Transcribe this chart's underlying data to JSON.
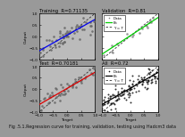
{
  "title": "Fig .5.1.Regression curve for training, validation, testing using Hadcm3 data",
  "fig_bg": "#999999",
  "panels": [
    {
      "label": "Training",
      "subtitle": "R=0.71135",
      "line_color": "#0000ee",
      "bg_color": "#bbbbbb",
      "has_legend": false,
      "slope": 0.69,
      "intercept": 0.05,
      "n_pts": 55,
      "noise": 0.2,
      "marker_color": "#666666",
      "marker_size": 3.5
    },
    {
      "label": "Validation",
      "subtitle": "R=0.81",
      "line_color": "#00cc00",
      "bg_color": "#ffffff",
      "has_legend": true,
      "slope": 0.8,
      "intercept": 0.02,
      "n_pts": 18,
      "noise": 0.13,
      "marker_color": "#888888",
      "marker_size": 3.5
    },
    {
      "label": "Test",
      "subtitle": "R=0.70181",
      "line_color": "#dd0000",
      "bg_color": "#bbbbbb",
      "has_legend": false,
      "slope": 0.71,
      "intercept": 0.03,
      "n_pts": 50,
      "noise": 0.21,
      "marker_color": "#666666",
      "marker_size": 3.5
    },
    {
      "label": "All",
      "subtitle": "R=0.72",
      "line_color": "#000000",
      "bg_color": "#ffffff",
      "has_legend": true,
      "slope": 0.7,
      "intercept": 0.03,
      "n_pts": 130,
      "noise": 0.22,
      "marker_color": "#111111",
      "marker_size": 2.0
    }
  ],
  "caption_fontsize": 3.5,
  "title_fontsize": 3.8,
  "tick_fontsize": 3.0,
  "label_fontsize": 3.2,
  "legend_fontsize": 3.0
}
